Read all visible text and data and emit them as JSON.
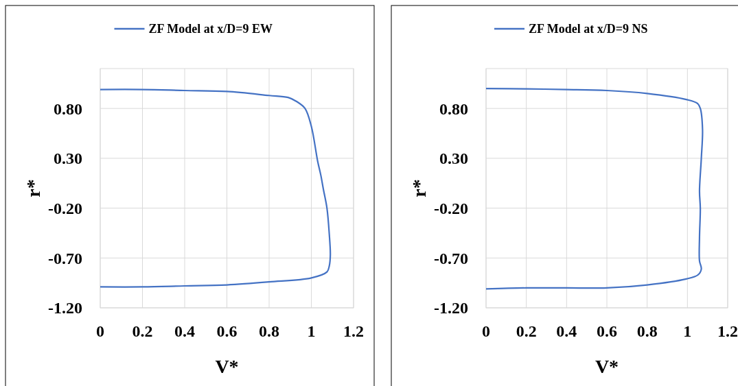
{
  "chart_data": [
    {
      "type": "line",
      "xlabel": "V*",
      "ylabel": "r*",
      "xlim": [
        0,
        1.2
      ],
      "ylim": [
        -1.2,
        1.2
      ],
      "xticks": [
        0,
        0.2,
        0.4,
        0.6,
        0.8,
        1,
        1.2
      ],
      "yticks": [
        {
          "value": -1.2,
          "label": "-1.20"
        },
        {
          "value": -0.7,
          "label": "-0.70"
        },
        {
          "value": -0.2,
          "label": "-0.20"
        },
        {
          "value": 0.3,
          "label": "0.30"
        },
        {
          "value": 0.8,
          "label": "0.80"
        }
      ],
      "grid": true,
      "legend": "top",
      "line_style": "solid",
      "series": [
        {
          "name": "ZF Model at x/D=9 EW",
          "color": "#4472c4",
          "x": [
            0,
            0.2,
            0.4,
            0.6,
            0.8,
            0.89,
            0.93,
            0.97,
            1.0,
            1.03,
            1.045,
            1.057,
            1.074,
            1.085,
            1.09,
            1.085,
            1.074,
            1.0,
            0.8,
            0.6,
            0.4,
            0.2,
            0
          ],
          "values": [
            0.99,
            0.99,
            0.98,
            0.97,
            0.93,
            0.91,
            0.87,
            0.8,
            0.62,
            0.27,
            0.13,
            -0.01,
            -0.2,
            -0.46,
            -0.67,
            -0.78,
            -0.84,
            -0.9,
            -0.94,
            -0.97,
            -0.98,
            -0.99,
            -0.99
          ]
        }
      ]
    },
    {
      "type": "line",
      "xlabel": "V*",
      "ylabel": "r*",
      "xlim": [
        0,
        1.2
      ],
      "ylim": [
        -1.2,
        1.2
      ],
      "xticks": [
        0,
        0.2,
        0.4,
        0.6,
        0.8,
        1,
        1.2
      ],
      "yticks": [
        {
          "value": -1.2,
          "label": "-1.20"
        },
        {
          "value": -0.7,
          "label": "-0.70"
        },
        {
          "value": -0.2,
          "label": "-0.20"
        },
        {
          "value": 0.3,
          "label": "0.30"
        },
        {
          "value": 0.8,
          "label": "0.80"
        }
      ],
      "grid": true,
      "legend": "top",
      "line_style": "solid",
      "series": [
        {
          "name": "ZF Model at x/D=9 NS",
          "color": "#4472c4",
          "x": [
            0,
            0.2,
            0.4,
            0.6,
            0.8,
            0.994,
            1.05,
            1.064,
            1.075,
            1.069,
            1.06,
            1.064,
            1.06,
            1.06,
            1.069,
            1.052,
            0.994,
            0.8,
            0.6,
            0.4,
            0.2,
            0
          ],
          "values": [
            1.0,
            0.996,
            0.99,
            0.98,
            0.95,
            0.89,
            0.85,
            0.8,
            0.59,
            0.3,
            -0.03,
            -0.2,
            -0.49,
            -0.73,
            -0.81,
            -0.87,
            -0.91,
            -0.97,
            -1.0,
            -1.0,
            -1.0,
            -1.01
          ]
        }
      ]
    }
  ]
}
